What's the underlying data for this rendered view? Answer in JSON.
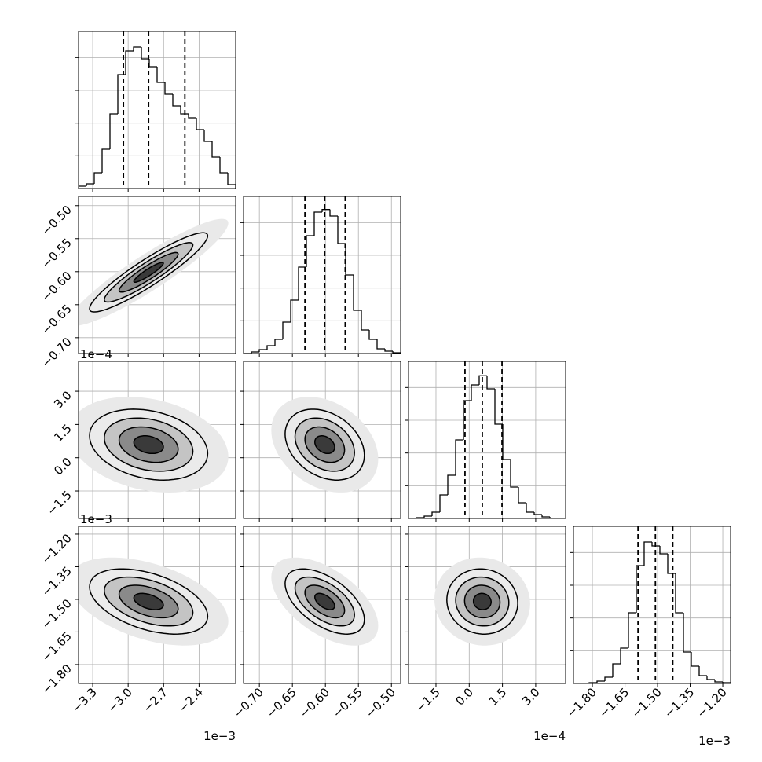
{
  "chart_data": {
    "type": "corner",
    "hist_ylim": [
      0,
      2400
    ],
    "hist_yticks": [
      500,
      1000,
      1500,
      2000
    ],
    "contour_levels": [
      0.5,
      1,
      1.5,
      2
    ],
    "params": [
      {
        "lim": [
          -3.42,
          -2.09
        ],
        "ticks": [
          {
            "value": -3.3,
            "label": "−3.3"
          },
          {
            "value": -3.0,
            "label": "−3.0"
          },
          {
            "value": -2.7,
            "label": "−2.7"
          },
          {
            "value": -2.4,
            "label": "−2.4"
          }
        ],
        "offset": "1e−3",
        "quantiles": [
          -3.04,
          -2.827,
          -2.52
        ],
        "sd": 0.25,
        "bins": [
          -3.42,
          -3.3535,
          -3.287,
          -3.2205,
          -3.154,
          -3.0875,
          -3.021,
          -2.9545,
          -2.888,
          -2.8215,
          -2.755,
          -2.6885,
          -2.622,
          -2.5555,
          -2.489,
          -2.4225,
          -2.356,
          -2.2895,
          -2.223,
          -2.1565,
          -2.09
        ],
        "counts": [
          36,
          72,
          240,
          600,
          1140,
          1740,
          2100,
          2160,
          1980,
          1860,
          1620,
          1440,
          1260,
          1140,
          1080,
          900,
          720,
          480,
          240,
          60
        ]
      },
      {
        "lim": [
          -0.724,
          -0.486
        ],
        "ticks": [
          {
            "value": -0.7,
            "label": "−0.70"
          },
          {
            "value": -0.65,
            "label": "−0.65"
          },
          {
            "value": -0.6,
            "label": "−0.60"
          },
          {
            "value": -0.55,
            "label": "−0.55"
          },
          {
            "value": -0.5,
            "label": "−0.50"
          }
        ],
        "quantiles": [
          -0.631,
          -0.601,
          -0.57
        ],
        "sd": 0.03,
        "bins": [
          -0.724,
          -0.7121,
          -0.7002,
          -0.6883,
          -0.6764,
          -0.6645,
          -0.6526,
          -0.6407,
          -0.6288,
          -0.6169,
          -0.605,
          -0.5931,
          -0.5812,
          -0.5693,
          -0.5574,
          -0.5455,
          -0.5336,
          -0.5217,
          -0.5098,
          -0.4979,
          -0.486
        ],
        "counts": [
          0,
          24,
          60,
          120,
          216,
          480,
          816,
          1320,
          1800,
          2160,
          2200,
          2100,
          1680,
          1200,
          660,
          360,
          216,
          72,
          36,
          12
        ]
      },
      {
        "lim": [
          -2.74,
          4.35
        ],
        "ticks": [
          {
            "value": -1.5,
            "label": "−1.5"
          },
          {
            "value": 0,
            "label": "0.0"
          },
          {
            "value": 1.5,
            "label": "1.5"
          },
          {
            "value": 3.0,
            "label": "3.0"
          }
        ],
        "offset": "1e−4",
        "quantiles": [
          -0.19,
          0.59,
          1.48
        ],
        "sd": 0.8,
        "bins": [
          -2.74,
          -2.3855,
          -2.031,
          -1.6765,
          -1.322,
          -0.9675,
          -0.613,
          -0.2585,
          0.096,
          0.4505,
          0.805,
          1.1595,
          1.514,
          1.8685,
          2.223,
          2.5775,
          2.932,
          3.2865,
          3.641,
          3.9955,
          4.35
        ],
        "counts": [
          0,
          12,
          36,
          96,
          360,
          660,
          1200,
          1800,
          2040,
          2180,
          1980,
          1440,
          900,
          480,
          240,
          96,
          60,
          24,
          0,
          0
        ]
      },
      {
        "lim": [
          -1.887,
          -1.164
        ],
        "ticks": [
          {
            "value": -1.8,
            "label": "−1.80"
          },
          {
            "value": -1.65,
            "label": "−1.65"
          },
          {
            "value": -1.5,
            "label": "−1.50"
          },
          {
            "value": -1.35,
            "label": "−1.35"
          },
          {
            "value": -1.2,
            "label": "−1.20"
          }
        ],
        "offset": "1e−3",
        "quantiles": [
          -1.59,
          -1.51,
          -1.43
        ],
        "sd": 0.075,
        "bins": [
          -1.887,
          -1.8509,
          -1.8147,
          -1.7786,
          -1.7424,
          -1.7063,
          -1.6701,
          -1.634,
          -1.5978,
          -1.5617,
          -1.5255,
          -1.4894,
          -1.4532,
          -1.4171,
          -1.3809,
          -1.3448,
          -1.3086,
          -1.2725,
          -1.2363,
          -1.2002,
          -1.164
        ],
        "counts": [
          0,
          0,
          12,
          36,
          96,
          300,
          540,
          1080,
          1800,
          2160,
          2100,
          1980,
          1680,
          1080,
          480,
          264,
          120,
          60,
          24,
          12
        ]
      }
    ],
    "panels": [
      {
        "x": 0,
        "y": 1,
        "rho": 0.92
      },
      {
        "x": 0,
        "y": 2,
        "rho": -0.25
      },
      {
        "x": 1,
        "y": 2,
        "rho": -0.3
      },
      {
        "x": 0,
        "y": 3,
        "rho": -0.45
      },
      {
        "x": 1,
        "y": 3,
        "rho": -0.55
      },
      {
        "x": 2,
        "y": 3,
        "rho": -0.05
      }
    ]
  }
}
